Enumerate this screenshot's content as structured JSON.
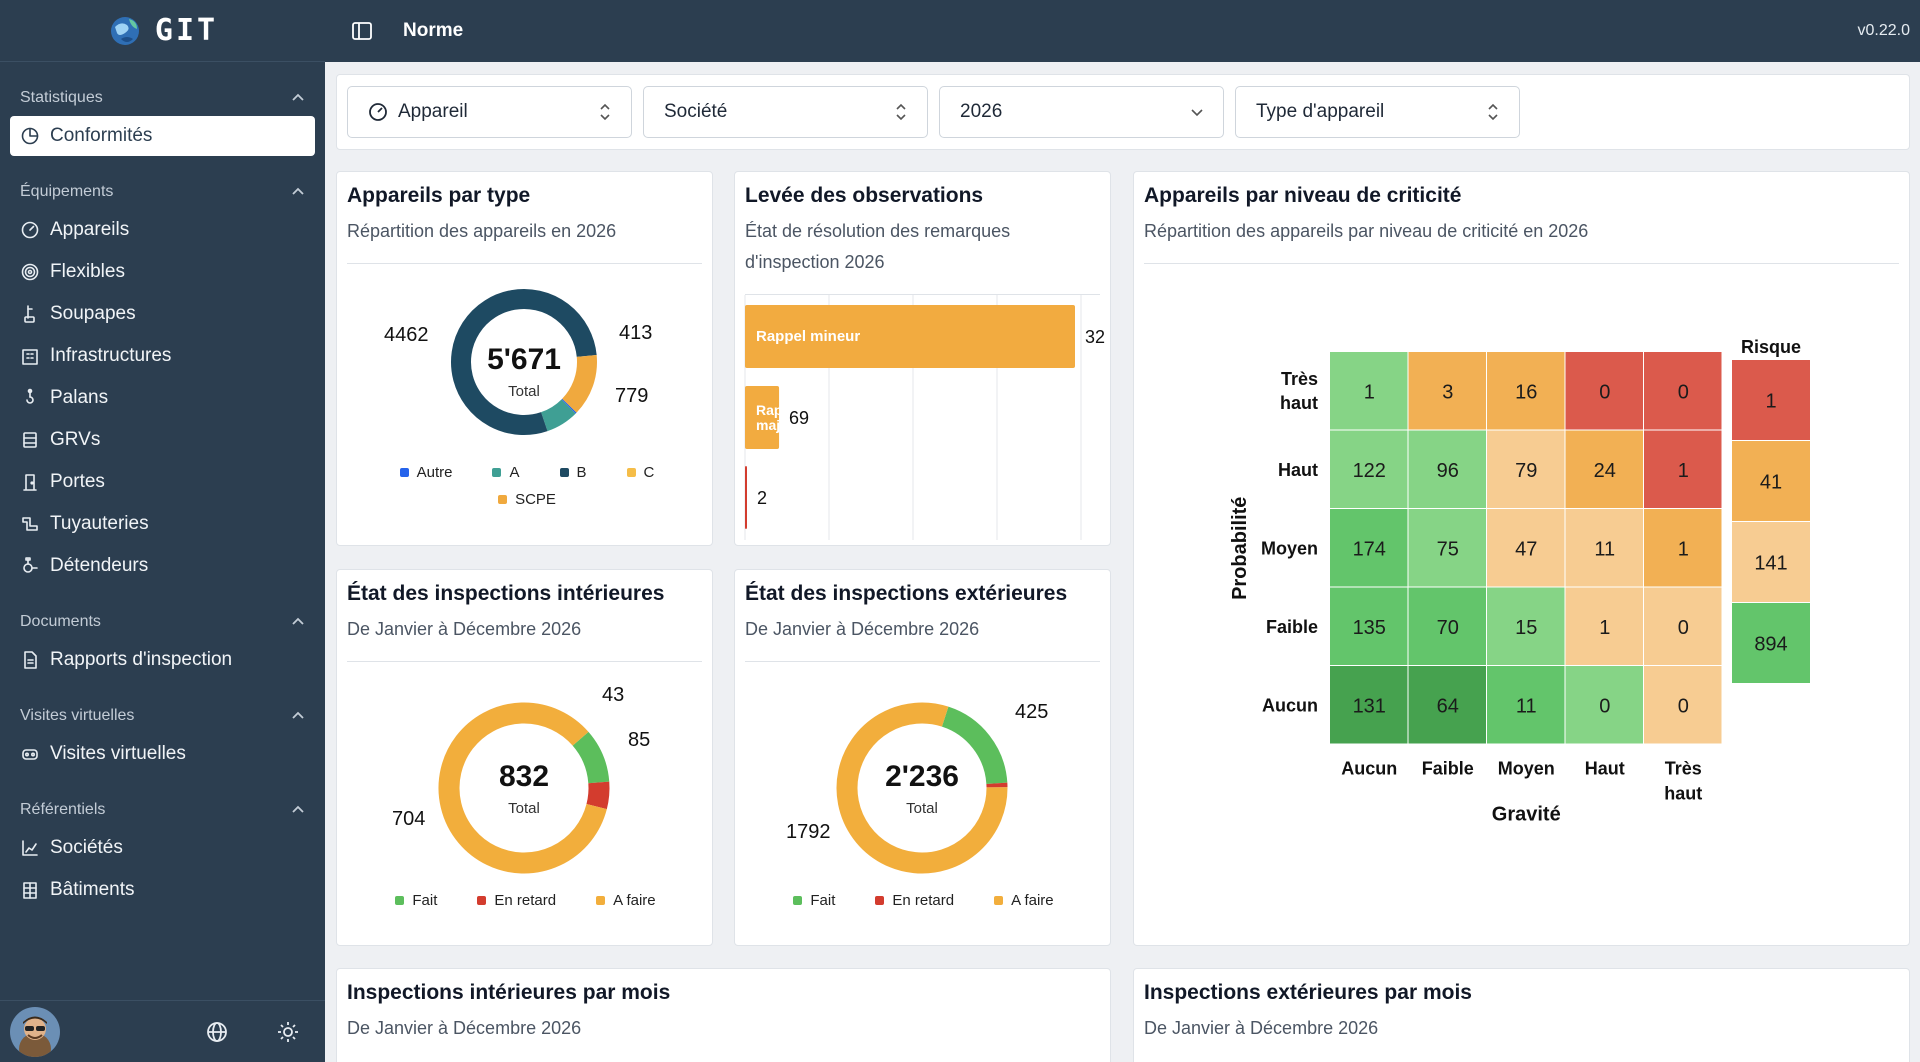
{
  "brand": {
    "name": "GIT",
    "logo_icon": "globe-leaf-logo-icon"
  },
  "topbar": {
    "title": "Norme",
    "version": "v0.22.0"
  },
  "sidebar": {
    "sections": [
      {
        "label": "Statistiques",
        "items": [
          {
            "label": "Conformités",
            "icon": "pie-chart-icon",
            "active": true
          }
        ]
      },
      {
        "label": "Équipements",
        "items": [
          {
            "label": "Appareils",
            "icon": "gauge-icon"
          },
          {
            "label": "Flexibles",
            "icon": "coil-icon"
          },
          {
            "label": "Soupapes",
            "icon": "valve-icon"
          },
          {
            "label": "Infrastructures",
            "icon": "building-icon"
          },
          {
            "label": "Palans",
            "icon": "hoist-icon"
          },
          {
            "label": "GRVs",
            "icon": "container-icon"
          },
          {
            "label": "Portes",
            "icon": "door-icon"
          },
          {
            "label": "Tuyauteries",
            "icon": "pipe-icon"
          },
          {
            "label": "Détendeurs",
            "icon": "regulator-icon"
          }
        ]
      },
      {
        "label": "Documents",
        "items": [
          {
            "label": "Rapports d'inspection",
            "icon": "document-icon"
          }
        ]
      },
      {
        "label": "Visites virtuelles",
        "items": [
          {
            "label": "Visites virtuelles",
            "icon": "headset-icon"
          }
        ]
      },
      {
        "label": "Référentiels",
        "items": [
          {
            "label": "Sociétés",
            "icon": "company-chart-icon"
          },
          {
            "label": "Bâtiments",
            "icon": "building-grid-icon"
          }
        ]
      }
    ]
  },
  "filters": [
    {
      "label": "Appareil",
      "icon": "gauge-icon",
      "control": "sort"
    },
    {
      "label": "Société",
      "control": "sort"
    },
    {
      "label": "2026",
      "control": "chevron"
    },
    {
      "label": "Type d'appareil",
      "control": "sort"
    }
  ],
  "cards": {
    "types": {
      "title": "Appareils par type",
      "subtitle": "Répartition des appareils en 2026",
      "center_value": "5'671",
      "center_label": "Total",
      "labels": [
        "4462",
        "413",
        "779"
      ]
    },
    "observations": {
      "title": "Levée des observations",
      "subtitle": "État de résolution des remarques d'inspection 2026"
    },
    "criticite": {
      "title": "Appareils par niveau de criticité",
      "subtitle": "Répartition des appareils par niveau de criticité en 2026"
    },
    "interieures": {
      "title": "État des inspections intérieures",
      "subtitle": "De Janvier à Décembre 2026",
      "center_value": "832",
      "center_label": "Total",
      "labels": [
        "43",
        "85",
        "704"
      ]
    },
    "exterieures": {
      "title": "État des inspections extérieures",
      "subtitle": "De Janvier à Décembre 2026",
      "center_value": "2'236",
      "center_label": "Total",
      "labels": [
        "425",
        "1792"
      ]
    },
    "int_mois": {
      "title": "Inspections intérieures par mois",
      "subtitle": "De Janvier à Décembre 2026"
    },
    "ext_mois": {
      "title": "Inspections extérieures par mois",
      "subtitle": "De Janvier à Décembre 2026"
    }
  },
  "colors": {
    "sidebar": "#2c3e50",
    "autre": "#2563eb",
    "A": "#3f9f94",
    "B": "#1e4a62",
    "C": "#f5bd48",
    "SCPE": "#f0a93e",
    "fait": "#5cbe5c",
    "en_retard": "#d33c2e",
    "a_faire": "#f2ae3c",
    "observation_bar": "#f2ab40"
  },
  "chart_data": [
    {
      "type": "pie",
      "title": "Appareils par type",
      "categories": [
        "Autre",
        "A",
        "B",
        "C",
        "SCPE"
      ],
      "values": [
        17,
        413,
        4462,
        0,
        779
      ],
      "total": 5671
    },
    {
      "type": "bar",
      "title": "Levée des observations",
      "orientation": "horizontal",
      "categories": [
        "Rappel mineur",
        "Rappel majeur",
        ""
      ],
      "values": [
        32,
        69,
        2
      ],
      "note": "value labels as printed"
    },
    {
      "type": "pie",
      "title": "État des inspections intérieures",
      "categories": [
        "Fait",
        "En retard",
        "A faire"
      ],
      "values": [
        85,
        43,
        704
      ],
      "total": 832
    },
    {
      "type": "pie",
      "title": "État des inspections extérieures",
      "categories": [
        "Fait",
        "En retard",
        "A faire"
      ],
      "values": [
        425,
        19,
        1792
      ],
      "total": 2236
    },
    {
      "type": "heatmap",
      "title": "Appareils par niveau de criticité",
      "xlabel": "Gravité",
      "ylabel": "Probabilité",
      "x": [
        "Aucun",
        "Faible",
        "Moyen",
        "Haut",
        "Très haut"
      ],
      "y": [
        "Très haut",
        "Haut",
        "Moyen",
        "Faible",
        "Aucun"
      ],
      "values": [
        [
          1,
          3,
          16,
          0,
          0
        ],
        [
          122,
          96,
          79,
          24,
          1
        ],
        [
          174,
          75,
          47,
          11,
          1
        ],
        [
          135,
          70,
          15,
          1,
          0
        ],
        [
          131,
          64,
          11,
          0,
          0
        ]
      ],
      "cell_levels": [
        [
          1,
          3,
          3,
          4,
          4
        ],
        [
          1,
          1,
          2,
          3,
          4
        ],
        [
          0,
          1,
          2,
          2,
          3
        ],
        [
          0,
          0,
          1,
          2,
          2
        ],
        [
          -1,
          -1,
          0,
          1,
          2
        ]
      ],
      "risk_title": "Risque",
      "risk_values": [
        1,
        41,
        141,
        894
      ],
      "risk_levels": [
        4,
        3,
        2,
        0
      ]
    }
  ]
}
